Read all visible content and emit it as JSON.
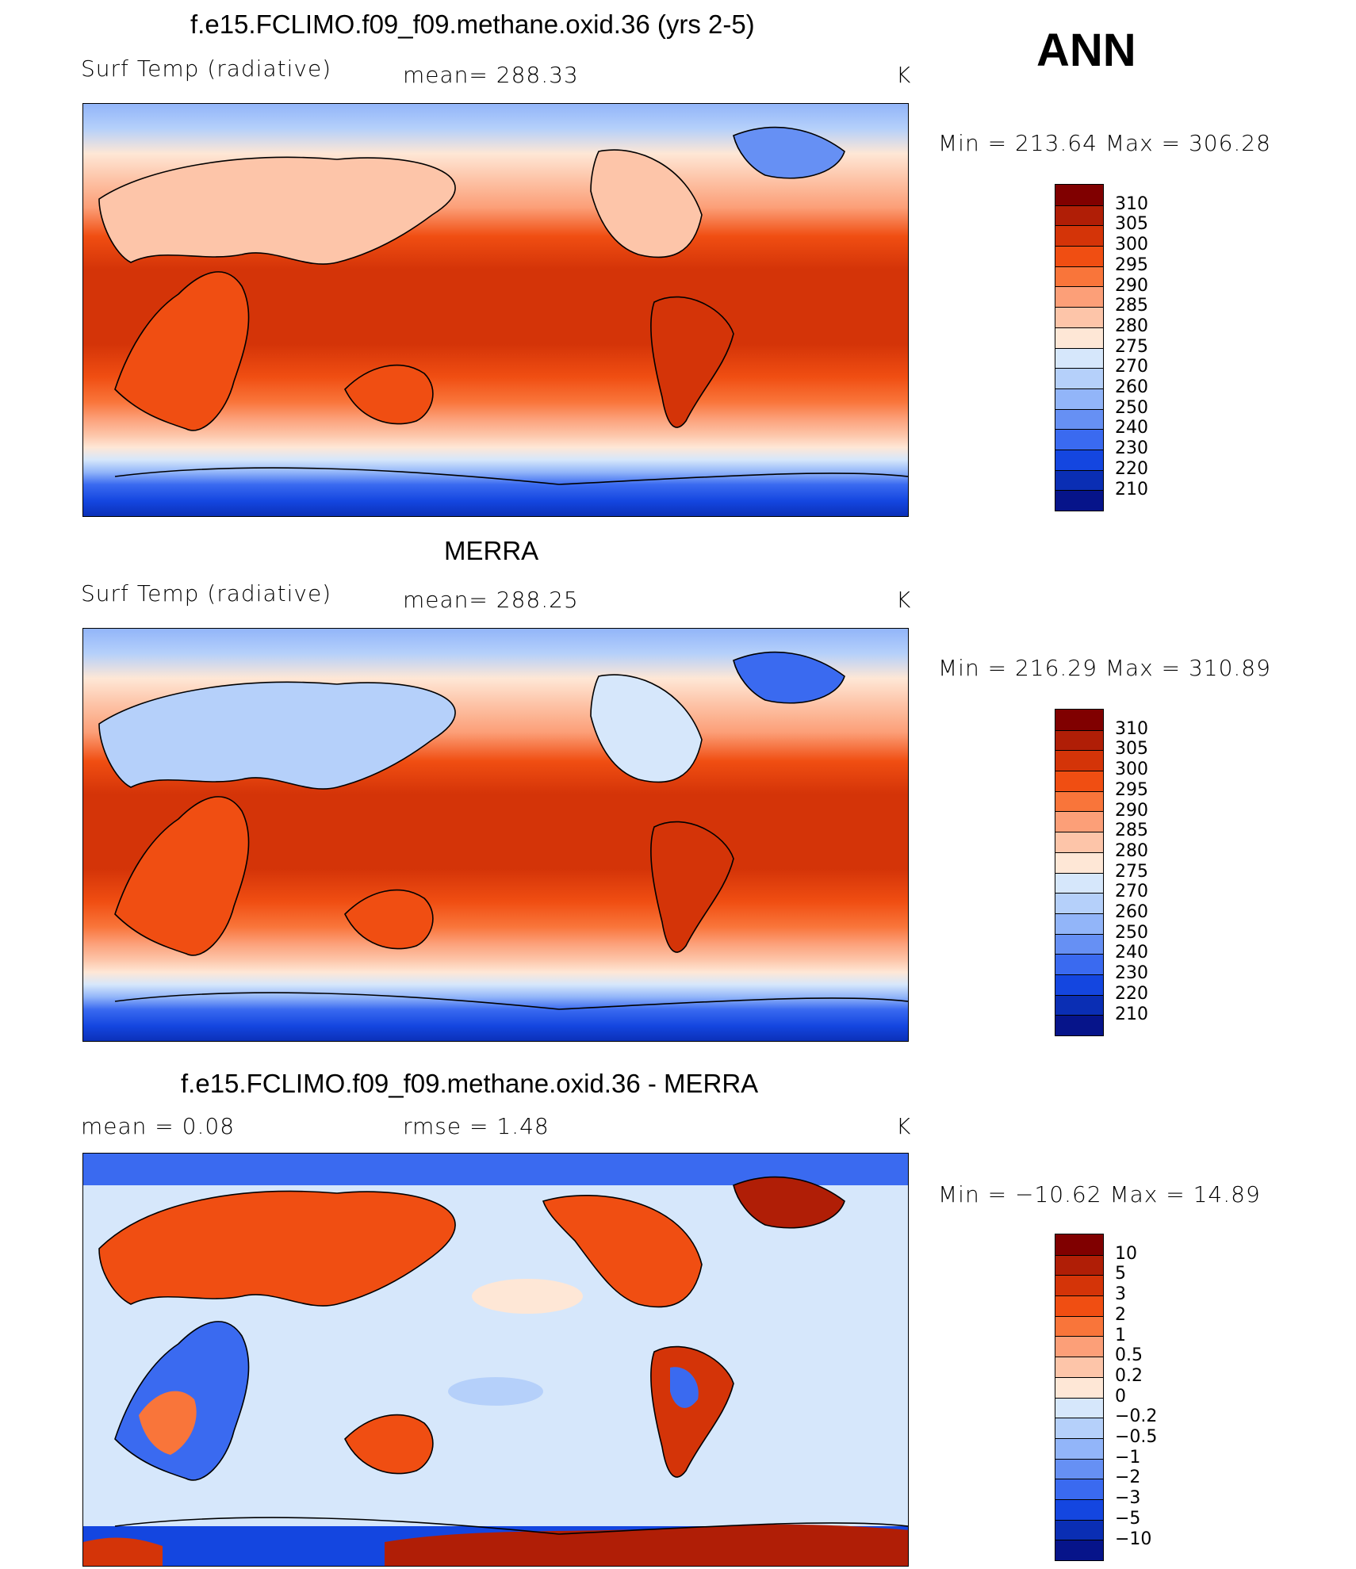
{
  "season": "ANN",
  "units": "K",
  "panels": [
    {
      "title": "f.e15.FCLIMO.f09_f09.methane.oxid.36 (yrs 2-5)",
      "left_label": "Surf Temp (radiative)",
      "mid_label": "mean=  288.33",
      "units": "K",
      "minmax": "Min  =  213.64  Max  =  306.28"
    },
    {
      "title": "MERRA",
      "left_label": "Surf Temp (radiative)",
      "mid_label": "mean=  288.25",
      "units": "K",
      "minmax": "Min  =  216.29  Max  =  310.89"
    },
    {
      "title": "f.e15.FCLIMO.f09_f09.methane.oxid.36 - MERRA",
      "left_label": "mean  =      0.08",
      "mid_label": "rmse  =      1.48",
      "units": "K",
      "minmax": "Min  = −10.62  Max  =    14.89"
    }
  ],
  "colorbar_abs": {
    "labels": [
      "310",
      "305",
      "300",
      "295",
      "290",
      "285",
      "280",
      "275",
      "270",
      "260",
      "250",
      "240",
      "230",
      "220",
      "210"
    ],
    "colors": [
      "#800000",
      "#b01e06",
      "#d43408",
      "#f04e12",
      "#f9753a",
      "#fc9f78",
      "#fdc5a9",
      "#fee7d6",
      "#d6e7fb",
      "#b5d0fa",
      "#92b5f9",
      "#6690f4",
      "#3a6af0",
      "#1446e0",
      "#0a2eb4",
      "#06148a"
    ]
  },
  "colorbar_diff": {
    "labels": [
      "10",
      "5",
      "3",
      "2",
      "1",
      "0.5",
      "0.2",
      "0",
      "−0.2",
      "−0.5",
      "−1",
      "−2",
      "−3",
      "−5",
      "−10"
    ],
    "colors": [
      "#800000",
      "#b01e06",
      "#d43408",
      "#f04e12",
      "#f9753a",
      "#fc9f78",
      "#fdc5a9",
      "#fee7d6",
      "#d6e7fb",
      "#b5d0fa",
      "#92b5f9",
      "#6690f4",
      "#3a6af0",
      "#1446e0",
      "#0a2eb4",
      "#06148a"
    ]
  }
}
